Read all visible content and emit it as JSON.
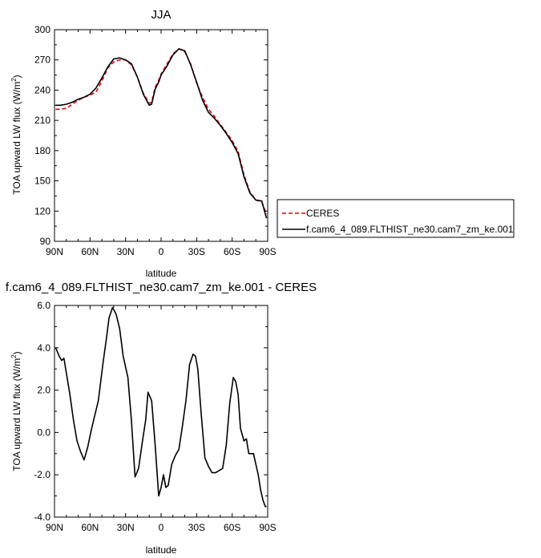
{
  "chart_data": [
    {
      "type": "line",
      "title": "JJA",
      "xlabel": "latitude",
      "ylabel": "TOA upward LW flux (W/m",
      "ylabel_sup": "2",
      "ylabel_close": ")",
      "xlim": [
        90,
        -90
      ],
      "ylim": [
        90,
        300
      ],
      "xticks": [
        90,
        60,
        30,
        0,
        -30,
        -60,
        -90
      ],
      "xtick_labels": [
        "90N",
        "60N",
        "30N",
        "0",
        "30S",
        "60S",
        "90S"
      ],
      "yticks": [
        90,
        120,
        150,
        180,
        210,
        240,
        270,
        300
      ],
      "ytick_labels": [
        "90",
        "120",
        "150",
        "180",
        "210",
        "240",
        "270",
        "300"
      ],
      "grid": false,
      "legend": "right",
      "series": [
        {
          "name": "CERES",
          "color": "#e8000b",
          "dash": "dashed",
          "x": [
            89,
            85,
            80,
            75,
            70,
            65,
            60,
            55,
            50,
            45,
            40,
            35,
            30,
            25,
            20,
            15,
            10,
            8,
            5,
            2,
            0,
            -5,
            -10,
            -15,
            -20,
            -25,
            -30,
            -35,
            -40,
            -45,
            -50,
            -55,
            -60,
            -65,
            -70,
            -75,
            -80,
            -85,
            -89
          ],
          "y": [
            221,
            221,
            222,
            226,
            230,
            233,
            235,
            238,
            249,
            262,
            268,
            270,
            270,
            265,
            253,
            237,
            227,
            228,
            243,
            250,
            256,
            266,
            276,
            281,
            278,
            266,
            247,
            233,
            221,
            214,
            206,
            198,
            190,
            179,
            156,
            139,
            131,
            129,
            117
          ]
        },
        {
          "name": "f.cam6_4_089.FLTHIST_ne30.cam7_zm_ke.001",
          "color": "#000000",
          "dash": "solid",
          "x": [
            89,
            85,
            80,
            75,
            70,
            65,
            60,
            55,
            50,
            45,
            40,
            35,
            30,
            25,
            20,
            15,
            10,
            8,
            5,
            2,
            0,
            -5,
            -10,
            -15,
            -20,
            -25,
            -30,
            -35,
            -40,
            -45,
            -50,
            -55,
            -60,
            -65,
            -70,
            -75,
            -80,
            -85,
            -89
          ],
          "y": [
            225,
            225,
            226,
            228,
            231,
            233,
            236,
            242,
            252,
            263,
            271,
            272,
            270,
            266,
            253,
            236,
            225,
            226,
            241,
            248,
            255,
            264,
            275,
            281,
            279,
            265,
            248,
            230,
            218,
            212,
            205,
            197,
            188,
            177,
            154,
            138,
            131,
            130,
            113
          ]
        }
      ]
    },
    {
      "type": "line",
      "title": "f.cam6_4_089.FLTHIST_ne30.cam7_zm_ke.001 - CERES",
      "xlabel": "latitude",
      "ylabel": "TOA upward LW flux (W/m",
      "ylabel_sup": "2",
      "ylabel_close": ")",
      "xlim": [
        90,
        -90
      ],
      "ylim": [
        -4.0,
        6.0
      ],
      "xticks": [
        90,
        60,
        30,
        0,
        -30,
        -60,
        -90
      ],
      "xtick_labels": [
        "90N",
        "60N",
        "30N",
        "0",
        "30S",
        "60S",
        "90S"
      ],
      "yticks": [
        -4,
        -2,
        0,
        2,
        4,
        6
      ],
      "ytick_labels": [
        "-4.0",
        "-2.0",
        "0.0",
        "2.0",
        "4.0",
        "6.0"
      ],
      "grid": false,
      "series": [
        {
          "color": "#000000",
          "dash": "solid",
          "x": [
            89,
            86,
            84,
            82,
            80,
            77,
            74,
            71,
            68,
            65,
            62,
            59,
            56,
            53,
            49,
            46,
            44,
            41,
            38,
            35,
            32,
            28,
            25,
            22,
            19,
            16,
            13,
            11,
            8,
            5,
            2,
            0,
            -2,
            -4,
            -6,
            -9,
            -12,
            -15,
            -18,
            -21,
            -24,
            -27,
            -29,
            -31,
            -34,
            -37,
            -40,
            -43,
            -46,
            -49,
            -52,
            -55,
            -58,
            -61,
            -63,
            -65,
            -67,
            -70,
            -72,
            -74,
            -76,
            -78,
            -80,
            -82,
            -84,
            -86,
            -88,
            -89
          ],
          "y": [
            4.0,
            3.6,
            3.4,
            3.5,
            2.8,
            1.8,
            0.6,
            -0.4,
            -0.9,
            -1.3,
            -0.7,
            0.1,
            0.8,
            1.5,
            3.3,
            4.5,
            5.4,
            5.9,
            5.6,
            4.9,
            3.6,
            2.6,
            0.5,
            -2.1,
            -1.7,
            -0.5,
            0.6,
            1.9,
            1.5,
            -0.6,
            -3.0,
            -2.6,
            -2.0,
            -2.6,
            -2.5,
            -1.5,
            -1.1,
            -0.8,
            0.3,
            1.5,
            3.2,
            3.7,
            3.6,
            3.0,
            0.8,
            -1.2,
            -1.6,
            -1.9,
            -1.9,
            -1.8,
            -1.7,
            -0.6,
            1.4,
            2.6,
            2.4,
            1.8,
            0.2,
            -0.4,
            -0.3,
            -1.0,
            -1.0,
            -1.0,
            -1.5,
            -2.0,
            -2.7,
            -3.2,
            -3.5,
            -3.5
          ]
        }
      ]
    }
  ],
  "legend_entries": [
    "CERES",
    "f.cam6_4_089.FLTHIST_ne30.cam7_zm_ke.001"
  ]
}
